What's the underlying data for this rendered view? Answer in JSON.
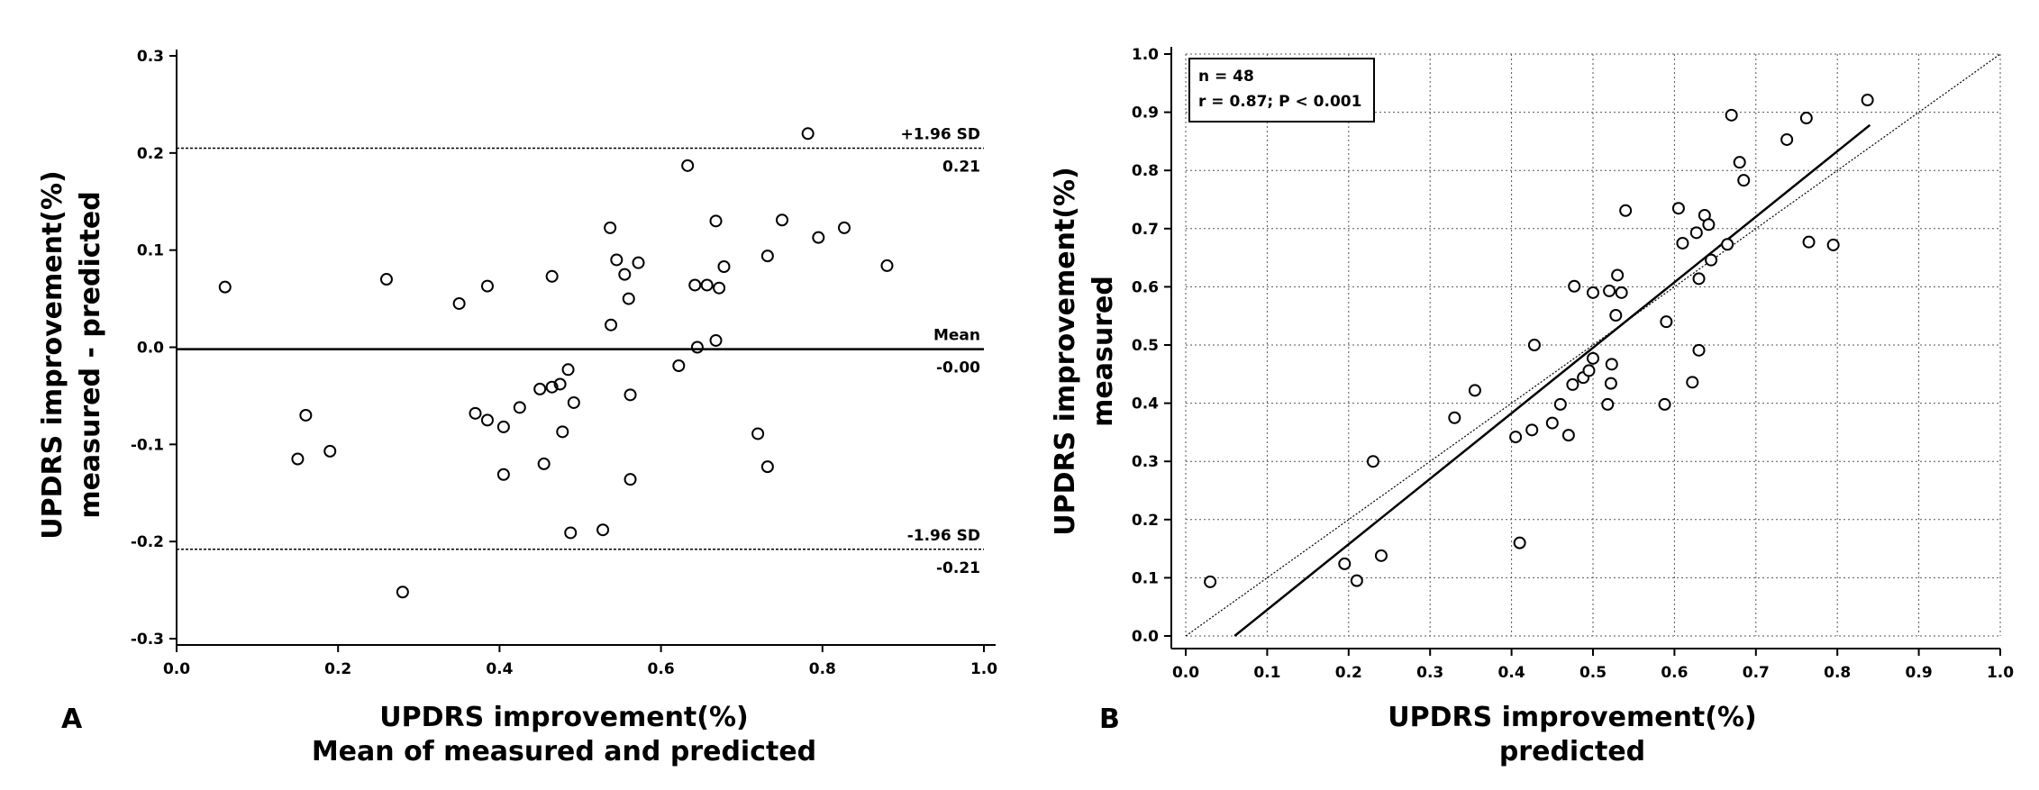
{
  "chart_data": [
    {
      "panel": "A",
      "type": "scatter",
      "xlabel_line1": "UPDRS improvement(%)",
      "xlabel_line2": "Mean of measured and predicted",
      "ylabel_line1": "UPDRS improvement(%)",
      "ylabel_line2": "measured - predicted",
      "xlim": [
        0.0,
        1.0
      ],
      "ylim": [
        -0.3,
        0.3
      ],
      "x_ticks": [
        "0.0",
        "0.2",
        "0.4",
        "0.6",
        "0.8",
        "1.0"
      ],
      "y_ticks": [
        "-0.3",
        "-0.2",
        "-0.1",
        "0.0",
        "0.1",
        "0.2",
        "0.3"
      ],
      "reference_lines": [
        {
          "name": "upper-loa",
          "label": "+1.96 SD",
          "value_label": "0.21",
          "y": 0.205,
          "style": "dashed"
        },
        {
          "name": "mean",
          "label": "Mean",
          "value_label": "-0.00",
          "y": -0.002,
          "style": "solid"
        },
        {
          "name": "lower-loa",
          "label": "-1.96 SD",
          "value_label": "-0.21",
          "y": -0.208,
          "style": "dashed"
        }
      ],
      "points": [
        [
          0.06,
          0.062
        ],
        [
          0.15,
          -0.115
        ],
        [
          0.16,
          -0.07
        ],
        [
          0.19,
          -0.107
        ],
        [
          0.26,
          0.07
        ],
        [
          0.28,
          -0.252
        ],
        [
          0.35,
          0.045
        ],
        [
          0.37,
          -0.068
        ],
        [
          0.385,
          0.063
        ],
        [
          0.385,
          -0.075
        ],
        [
          0.405,
          -0.082
        ],
        [
          0.405,
          -0.131
        ],
        [
          0.425,
          -0.062
        ],
        [
          0.45,
          -0.043
        ],
        [
          0.455,
          -0.12
        ],
        [
          0.465,
          -0.041
        ],
        [
          0.465,
          0.073
        ],
        [
          0.475,
          -0.038
        ],
        [
          0.478,
          -0.087
        ],
        [
          0.485,
          -0.023
        ],
        [
          0.488,
          -0.191
        ],
        [
          0.492,
          -0.057
        ],
        [
          0.528,
          -0.188
        ],
        [
          0.537,
          0.123
        ],
        [
          0.538,
          0.023
        ],
        [
          0.545,
          0.09
        ],
        [
          0.555,
          0.075
        ],
        [
          0.56,
          0.05
        ],
        [
          0.562,
          -0.136
        ],
        [
          0.562,
          -0.049
        ],
        [
          0.572,
          0.087
        ],
        [
          0.622,
          -0.019
        ],
        [
          0.633,
          0.187
        ],
        [
          0.642,
          0.064
        ],
        [
          0.645,
          0.0
        ],
        [
          0.657,
          0.064
        ],
        [
          0.668,
          0.007
        ],
        [
          0.668,
          0.13
        ],
        [
          0.672,
          0.061
        ],
        [
          0.678,
          0.083
        ],
        [
          0.72,
          -0.089
        ],
        [
          0.732,
          -0.123
        ],
        [
          0.732,
          0.094
        ],
        [
          0.75,
          0.131
        ],
        [
          0.782,
          0.22
        ],
        [
          0.795,
          0.113
        ],
        [
          0.827,
          0.123
        ],
        [
          0.88,
          0.084
        ]
      ]
    },
    {
      "panel": "B",
      "type": "scatter",
      "xlabel_line1": "UPDRS improvement(%)",
      "xlabel_line2": "predicted",
      "ylabel_line1": "UPDRS improvement(%)",
      "ylabel_line2": "measured",
      "xlim": [
        0.0,
        1.0
      ],
      "ylim": [
        0.0,
        1.0
      ],
      "x_ticks": [
        "0.0",
        "0.1",
        "0.2",
        "0.3",
        "0.4",
        "0.5",
        "0.6",
        "0.7",
        "0.8",
        "0.9",
        "1.0"
      ],
      "y_ticks": [
        "0.0",
        "0.1",
        "0.2",
        "0.3",
        "0.4",
        "0.5",
        "0.6",
        "0.7",
        "0.8",
        "0.9",
        "1.0"
      ],
      "grid": true,
      "stats": {
        "n_line": "n = 48",
        "r_line": "r = 0.87; P < 0.001"
      },
      "regression_line": {
        "x": [
          0.06,
          0.84
        ],
        "y": [
          0.0,
          0.878
        ]
      },
      "identity_line": {
        "x": [
          0.0,
          1.0
        ],
        "y": [
          0.0,
          1.0
        ]
      },
      "points": [
        [
          0.03,
          0.093
        ],
        [
          0.195,
          0.124
        ],
        [
          0.21,
          0.095
        ],
        [
          0.23,
          0.3
        ],
        [
          0.24,
          0.138
        ],
        [
          0.33,
          0.375
        ],
        [
          0.355,
          0.422
        ],
        [
          0.405,
          0.342
        ],
        [
          0.41,
          0.16
        ],
        [
          0.425,
          0.354
        ],
        [
          0.428,
          0.5
        ],
        [
          0.45,
          0.366
        ],
        [
          0.46,
          0.398
        ],
        [
          0.47,
          0.345
        ],
        [
          0.475,
          0.432
        ],
        [
          0.477,
          0.601
        ],
        [
          0.488,
          0.444
        ],
        [
          0.495,
          0.456
        ],
        [
          0.5,
          0.477
        ],
        [
          0.5,
          0.59
        ],
        [
          0.518,
          0.398
        ],
        [
          0.52,
          0.593
        ],
        [
          0.522,
          0.434
        ],
        [
          0.523,
          0.467
        ],
        [
          0.528,
          0.551
        ],
        [
          0.53,
          0.62
        ],
        [
          0.535,
          0.59
        ],
        [
          0.54,
          0.731
        ],
        [
          0.588,
          0.398
        ],
        [
          0.59,
          0.54
        ],
        [
          0.605,
          0.735
        ],
        [
          0.61,
          0.675
        ],
        [
          0.622,
          0.436
        ],
        [
          0.627,
          0.693
        ],
        [
          0.63,
          0.491
        ],
        [
          0.63,
          0.614
        ],
        [
          0.637,
          0.723
        ],
        [
          0.642,
          0.707
        ],
        [
          0.645,
          0.646
        ],
        [
          0.665,
          0.673
        ],
        [
          0.67,
          0.895
        ],
        [
          0.68,
          0.814
        ],
        [
          0.685,
          0.783
        ],
        [
          0.738,
          0.853
        ],
        [
          0.762,
          0.89
        ],
        [
          0.765,
          0.677
        ],
        [
          0.795,
          0.672
        ],
        [
          0.837,
          0.921
        ]
      ]
    }
  ]
}
